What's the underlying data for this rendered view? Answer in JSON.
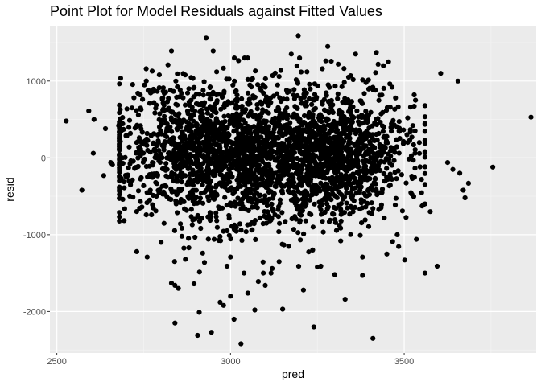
{
  "chart_data": {
    "type": "scatter",
    "title": "Point Plot for Model Residuals against Fitted Values",
    "xlabel": "pred",
    "ylabel": "resid",
    "xlim": [
      2480,
      3880
    ],
    "ylim": [
      -2540,
      1720
    ],
    "xticks": [
      2500,
      3000,
      3500
    ],
    "xtick_labels": [
      "2500",
      "3000",
      "3500"
    ],
    "yticks": [
      1000,
      0,
      -1000,
      -2000
    ],
    "ytick_labels": [
      "1000",
      "0",
      "-1000",
      "-2000"
    ],
    "grid": true,
    "legend": "none",
    "colors": {
      "panel": "#ebebeb",
      "grid_major": "#ffffff",
      "grid_minor": "#f5f5f5",
      "point": "#000000"
    },
    "points": [
      [
        2527,
        480
      ],
      [
        2572,
        -420
      ],
      [
        2592,
        610
      ],
      [
        2607,
        500
      ],
      [
        2605,
        60
      ],
      [
        2635,
        -230
      ],
      [
        2640,
        380
      ],
      [
        2655,
        -60
      ],
      [
        2660,
        -90
      ],
      [
        2678,
        420
      ],
      [
        2690,
        -540
      ],
      [
        2700,
        -250
      ],
      [
        2730,
        -1220
      ],
      [
        2740,
        820
      ],
      [
        2745,
        -640
      ],
      [
        2760,
        -1290
      ],
      [
        2795,
        1080
      ],
      [
        2810,
        620
      ],
      [
        2820,
        1210
      ],
      [
        2830,
        1390
      ],
      [
        2840,
        -2150
      ],
      [
        2830,
        -1630
      ],
      [
        2840,
        -1660
      ],
      [
        2850,
        -1700
      ],
      [
        2870,
        -1320
      ],
      [
        2880,
        -1170
      ],
      [
        2895,
        -1640
      ],
      [
        2905,
        -2310
      ],
      [
        2910,
        -2010
      ],
      [
        2925,
        -1360
      ],
      [
        2930,
        1560
      ],
      [
        2945,
        -2270
      ],
      [
        2950,
        1390
      ],
      [
        2970,
        -1880
      ],
      [
        2980,
        -1920
      ],
      [
        2990,
        -1410
      ],
      [
        3000,
        -1800
      ],
      [
        3010,
        -2100
      ],
      [
        3030,
        -2420
      ],
      [
        3050,
        -1760
      ],
      [
        3070,
        -1980
      ],
      [
        3080,
        -1610
      ],
      [
        3100,
        -1660
      ],
      [
        3120,
        -1440
      ],
      [
        3150,
        -1970
      ],
      [
        3175,
        1350
      ],
      [
        3195,
        1590
      ],
      [
        3210,
        -1720
      ],
      [
        3240,
        -2200
      ],
      [
        3250,
        -1420
      ],
      [
        3280,
        1450
      ],
      [
        3300,
        -1520
      ],
      [
        3310,
        1220
      ],
      [
        3330,
        -1840
      ],
      [
        3360,
        1350
      ],
      [
        3380,
        -1530
      ],
      [
        3410,
        -2350
      ],
      [
        3420,
        1370
      ],
      [
        3440,
        1200
      ],
      [
        3450,
        -1250
      ],
      [
        3455,
        1250
      ],
      [
        3465,
        920
      ],
      [
        3475,
        780
      ],
      [
        3495,
        -690
      ],
      [
        3510,
        520
      ],
      [
        3525,
        420
      ],
      [
        3535,
        -1060
      ],
      [
        3550,
        -280
      ],
      [
        3555,
        -610
      ],
      [
        3575,
        -700
      ],
      [
        3595,
        -1410
      ],
      [
        3605,
        1100
      ],
      [
        3625,
        -60
      ],
      [
        3640,
        -150
      ],
      [
        3655,
        1000
      ],
      [
        3660,
        -200
      ],
      [
        3670,
        -420
      ],
      [
        3675,
        -520
      ],
      [
        3685,
        -330
      ],
      [
        3755,
        -120
      ],
      [
        3865,
        530
      ],
      [
        2785,
        -690
      ],
      [
        2800,
        -1100
      ],
      [
        2805,
        780
      ],
      [
        2880,
        900
      ],
      [
        2960,
        1120
      ],
      [
        3050,
        1020
      ],
      [
        3100,
        920
      ],
      [
        3140,
        1060
      ],
      [
        3220,
        1120
      ],
      [
        3340,
        1050
      ],
      [
        3390,
        980
      ],
      [
        3460,
        660
      ],
      [
        3480,
        -1000
      ],
      [
        3380,
        -1290
      ],
      [
        3260,
        -1410
      ],
      [
        3140,
        -1350
      ],
      [
        3000,
        -1290
      ],
      [
        2920,
        -1240
      ],
      [
        2860,
        -1020
      ]
    ],
    "dense_regions": [
      {
        "cx": 2930,
        "cy": 80,
        "sx": 140,
        "sy": 430,
        "n": 1150
      },
      {
        "cx": 3270,
        "cy": 40,
        "sx": 120,
        "sy": 420,
        "n": 1150
      },
      {
        "cx": 3110,
        "cy": 0,
        "sx": 190,
        "sy": 470,
        "n": 700
      }
    ]
  }
}
